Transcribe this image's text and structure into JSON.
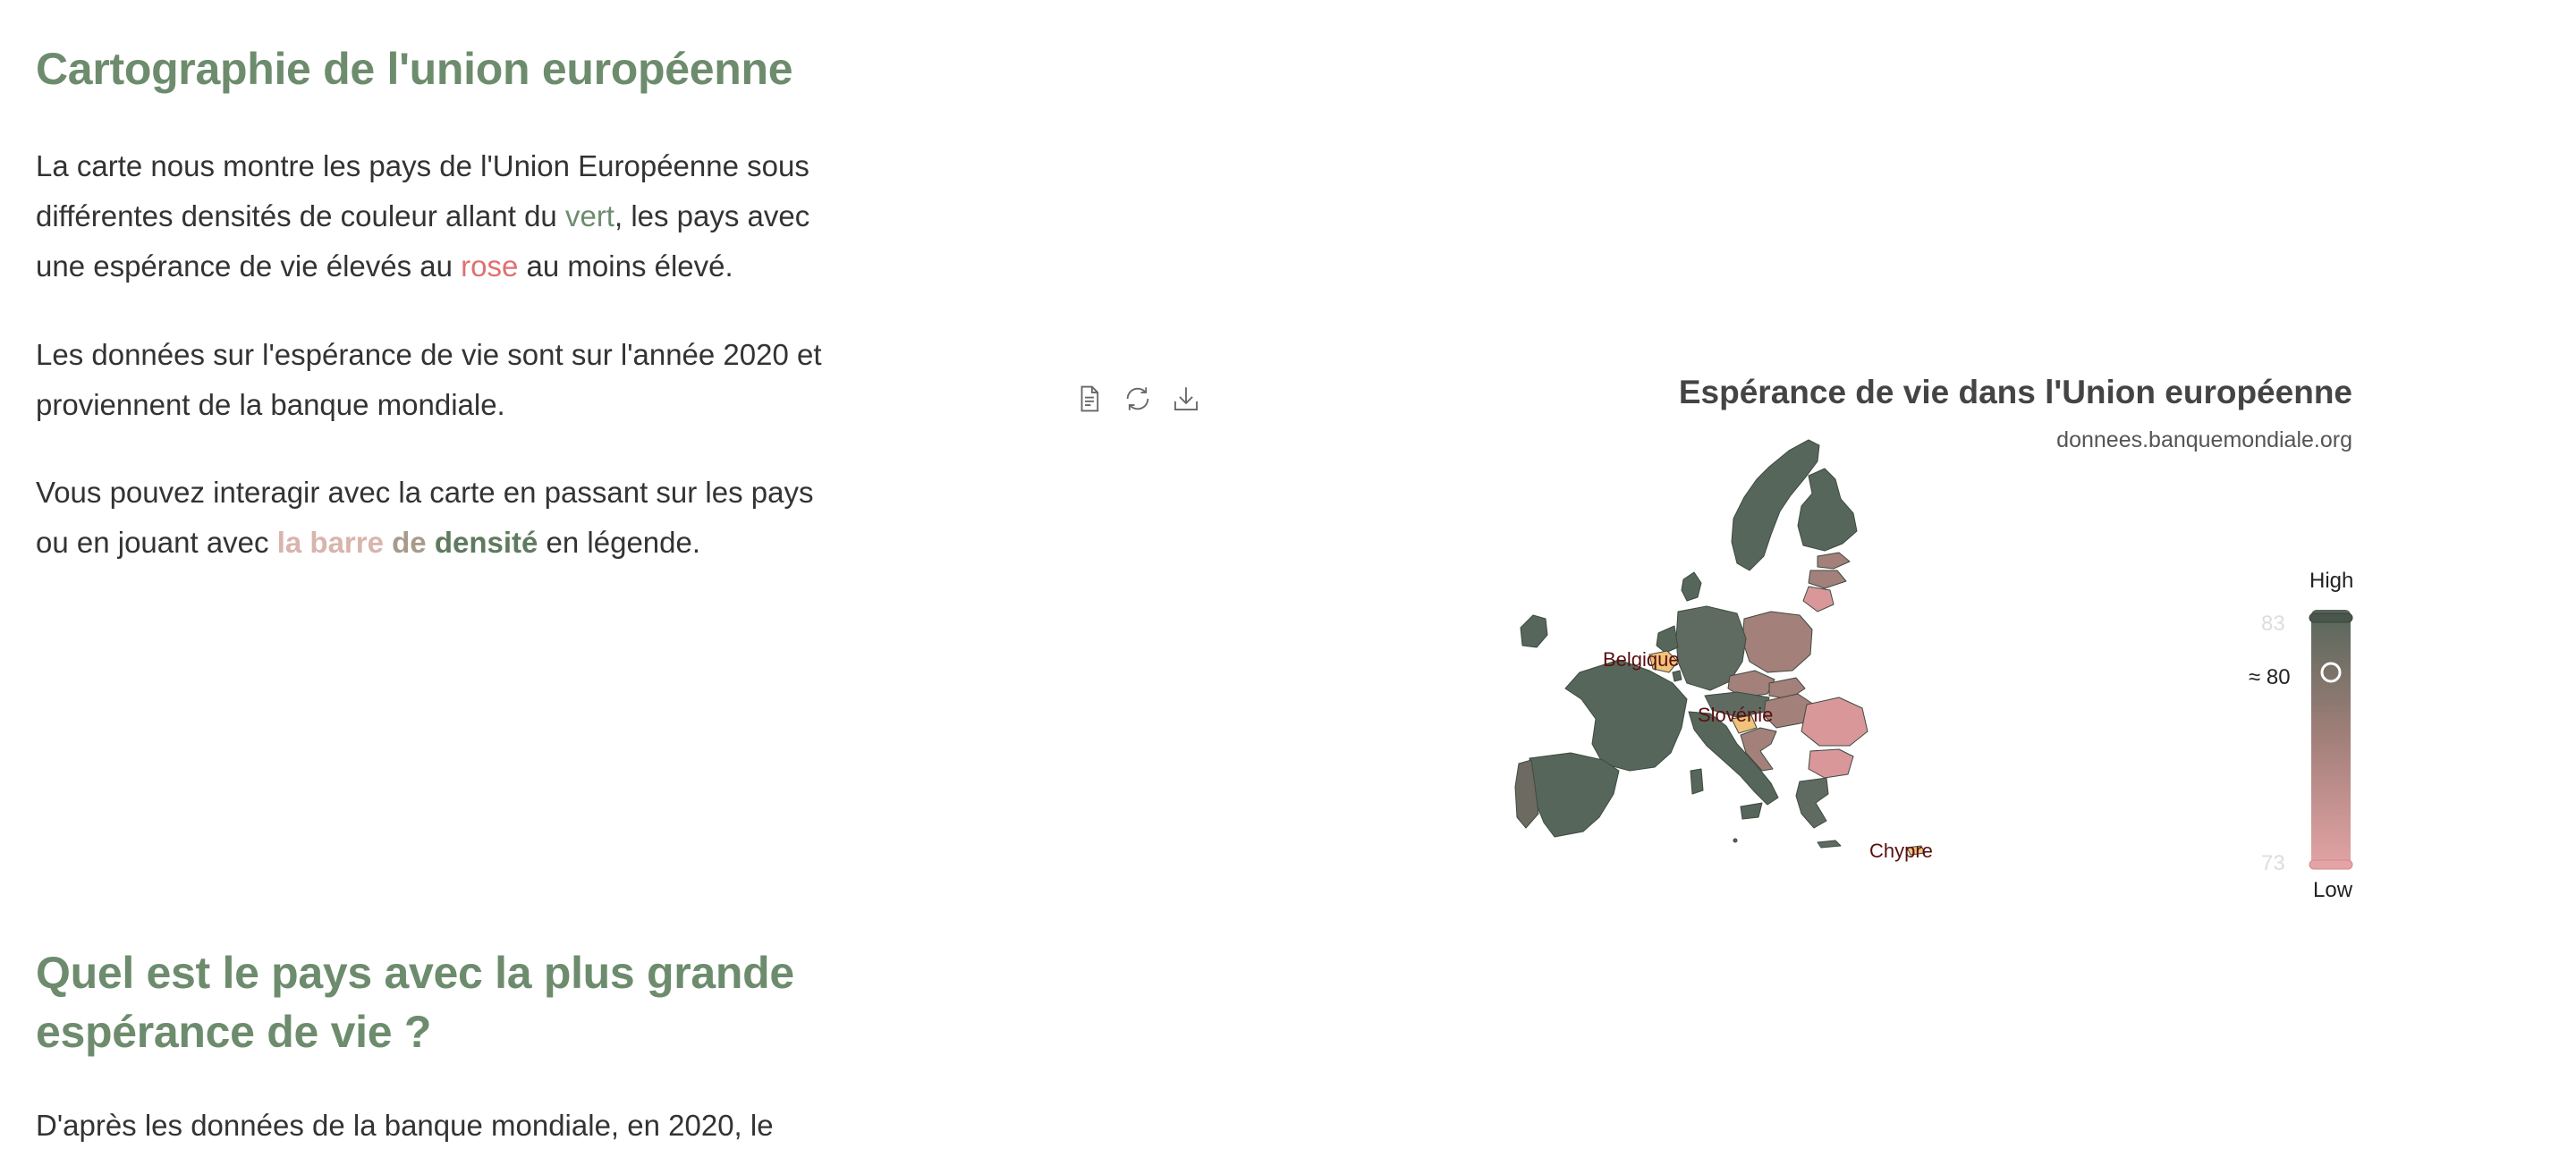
{
  "article": {
    "title1": "Cartographie de l'union européenne",
    "para1": {
      "part1": "La carte nous montre les pays de l'Union Européenne sous différentes densités de couleur allant du ",
      "green": "vert",
      "part2": ", les pays avec une espérance de vie élevés au ",
      "rose": "rose",
      "part3": " au moins élevé."
    },
    "para2": "Les données sur l'espérance de vie sont sur l'année 2020 et proviennent de la banque mondiale.",
    "para3": {
      "part1": "Vous pouvez interagir avec la carte en passant sur les pays ou en jouant avec ",
      "link_a": "la barre ",
      "link_b": "de ",
      "link_c": "densité",
      "part2": " en légende."
    },
    "title2": "Quel est le pays avec la plus grande espérance de vie ?",
    "para4": "D'après les données de la banque mondiale, en 2020, le"
  },
  "toolbar": {
    "icons": [
      "document-icon",
      "refresh-icon",
      "download-icon"
    ]
  },
  "chart": {
    "title": "Espérance de vie dans l'Union européenne",
    "source": "donnees.banquemondiale.org",
    "highlighted_countries": [
      "Belgique",
      "Slovénie",
      "Chypre"
    ],
    "legend": {
      "high_label": "High",
      "low_label": "Low",
      "max_value": "83",
      "min_value": "73",
      "current_label": "≈ 80",
      "current_value": 80,
      "min": 73,
      "max": 83
    },
    "colors": {
      "high": "#56665a",
      "mid": "#a3807a",
      "low": "#d9979a",
      "highlight": "#f2c27a",
      "label": "#5a0f0f"
    }
  }
}
